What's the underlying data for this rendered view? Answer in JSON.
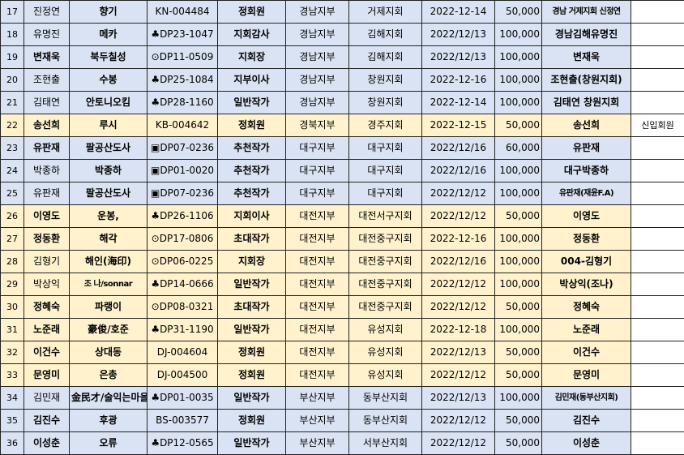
{
  "table": {
    "rows": [
      {
        "bg": "#dae3f3",
        "name_bold": false,
        "cells": [
          "17",
          "진정연",
          "향기",
          "KN-004484",
          "정회원",
          "경남지부",
          "거제지회",
          "2022-12-14",
          "50,000",
          "경남 거제지회 신정연",
          ""
        ]
      },
      {
        "bg": "#dae3f3",
        "name_bold": false,
        "cells": [
          "18",
          "유명진",
          "메카",
          "♣DP23-1047",
          "지회감사",
          "경남지부",
          "김해지회",
          "2022/12/13",
          "100,000",
          "경남김해유명진",
          ""
        ]
      },
      {
        "bg": "#dae3f3",
        "name_bold": true,
        "cells": [
          "19",
          "변재욱",
          "북두칠성",
          "⊙DP11-0509",
          "지회장",
          "경남지부",
          "김해지회",
          "2022/12/13",
          "100,000",
          "변재욱",
          ""
        ]
      },
      {
        "bg": "#dae3f3",
        "name_bold": false,
        "cells": [
          "20",
          "조현출",
          "수봉",
          "♣DP25-1084",
          "지부이사",
          "경남지부",
          "창원지회",
          "2022-12-16",
          "100,000",
          "조현출(창원지회)",
          ""
        ]
      },
      {
        "bg": "#dae3f3",
        "name_bold": false,
        "cells": [
          "21",
          "김태연",
          "안토니오킴",
          "♣DP28-1160",
          "일반작가",
          "경남지부",
          "창원지회",
          "2022-12-14",
          "100,000",
          "김태연 창원지회",
          ""
        ]
      },
      {
        "bg": "#fff2cc",
        "name_bold": true,
        "cells": [
          "22",
          "송선희",
          "루시",
          "KB-004642",
          "정회원",
          "경북지부",
          "경주지회",
          "2022-12-15",
          "50,000",
          "송선희",
          "신입회원"
        ]
      },
      {
        "bg": "#dae3f3",
        "name_bold": true,
        "cells": [
          "23",
          "유판재",
          "팔공산도사",
          "▣DP07-0236",
          "추천작가",
          "대구지부",
          "대구지회",
          "2022/12/16",
          "60,000",
          "유판재",
          ""
        ]
      },
      {
        "bg": "#dae3f3",
        "name_bold": false,
        "cells": [
          "24",
          "박종하",
          "박종하",
          "▣DP01-0020",
          "추천작가",
          "대구지부",
          "대구지회",
          "2022/12/16",
          "100,000",
          "대구박종하",
          ""
        ]
      },
      {
        "bg": "#dae3f3",
        "name_bold": false,
        "cells": [
          "25",
          "유판재",
          "팔공산도사",
          "▣DP07-0236",
          "추천작가",
          "대구지부",
          "대구지회",
          "2022/12/12",
          "100,000",
          "유판재(재윤F.A)",
          ""
        ]
      },
      {
        "bg": "#fff2cc",
        "name_bold": true,
        "cells": [
          "26",
          "이영도",
          "운봉,",
          "♣DP26-1106",
          "지회이사",
          "대전지부",
          "대전서구지회",
          "2022/12/12",
          "50,000",
          "이영도",
          ""
        ]
      },
      {
        "bg": "#fff2cc",
        "name_bold": true,
        "cells": [
          "27",
          "정동환",
          "해각",
          "⊙DP17-0806",
          "초대작가",
          "대전지부",
          "대전중구지회",
          "2022-12-16",
          "100,000",
          "정동환",
          ""
        ]
      },
      {
        "bg": "#fff2cc",
        "name_bold": false,
        "cells": [
          "28",
          "김형기",
          "해인(海印)",
          "⊙DP06-0225",
          "지회장",
          "대전지부",
          "대전중구지회",
          "2022/12/16",
          "100,000",
          "004-김형기",
          ""
        ]
      },
      {
        "bg": "#fff2cc",
        "name_bold": false,
        "cells": [
          "29",
          "박상익",
          "조 나/sonnar",
          "♣DP14-0666",
          "일반작가",
          "대전지부",
          "대전중구지회",
          "2022/12/12",
          "100,000",
          "박상익(조나)",
          ""
        ]
      },
      {
        "bg": "#fff2cc",
        "name_bold": true,
        "cells": [
          "30",
          "정혜숙",
          "파랭이",
          "⊙DP08-0321",
          "초대작가",
          "대전지부",
          "대전중구지회",
          "2022/12/12",
          "50,000",
          "정혜숙",
          ""
        ]
      },
      {
        "bg": "#fff2cc",
        "name_bold": true,
        "cells": [
          "31",
          "노준래",
          "豪俊/호준",
          "♣DP31-1190",
          "일반작가",
          "대전지부",
          "유성지회",
          "2022-12-18",
          "100,000",
          "노준래",
          ""
        ]
      },
      {
        "bg": "#fff2cc",
        "name_bold": true,
        "cells": [
          "32",
          "이건수",
          "상대동",
          "DJ-004604",
          "정회원",
          "대전지부",
          "유성지회",
          "2022/12/13",
          "50,000",
          "이건수",
          ""
        ]
      },
      {
        "bg": "#fff2cc",
        "name_bold": true,
        "cells": [
          "33",
          "문영미",
          "은총",
          "DJ-004500",
          "정회원",
          "대전지부",
          "유성지회",
          "2022/12/12",
          "50,000",
          "문영미",
          ""
        ]
      },
      {
        "bg": "#dae3f3",
        "name_bold": false,
        "cells": [
          "34",
          "김민재",
          "金民才/술익는마을",
          "♣DP01-0035",
          "일반작가",
          "부산지부",
          "동부산지회",
          "2022/12/13",
          "100,000",
          "김민재(동부산지회)",
          ""
        ]
      },
      {
        "bg": "#dae3f3",
        "name_bold": true,
        "cells": [
          "35",
          "김진수",
          "후광",
          "BS-003577",
          "정회원",
          "부산지부",
          "동부산지회",
          "2022/12/12",
          "50,000",
          "김진수",
          ""
        ]
      },
      {
        "bg": "#dae3f3",
        "name_bold": true,
        "cells": [
          "36",
          "이성춘",
          "오류",
          "♣DP12-0565",
          "일반작가",
          "부산지부",
          "서부산지회",
          "2022/12/12",
          "50,000",
          "이성춘",
          ""
        ]
      }
    ]
  }
}
